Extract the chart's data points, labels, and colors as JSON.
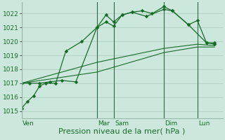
{
  "bg_color": "#cce8dd",
  "grid_color": "#aaccbb",
  "line_color": "#1a6b2a",
  "title": "Pression niveau de la mer( hPa )",
  "ylim": [
    1014.5,
    1022.8
  ],
  "yticks": [
    1015,
    1016,
    1017,
    1018,
    1019,
    1020,
    1021,
    1022
  ],
  "day_labels": [
    "Ven",
    "Mar",
    "Sam",
    "Dim",
    "Lun"
  ],
  "day_positions": [
    0.0,
    0.375,
    0.458,
    0.708,
    0.875
  ],
  "xlim": [
    0.0,
    1.0
  ],
  "series1_x": [
    0.0,
    0.03,
    0.06,
    0.09,
    0.12,
    0.17,
    0.22,
    0.3,
    0.375,
    0.42,
    0.458,
    0.5,
    0.55,
    0.6,
    0.65,
    0.708,
    0.75,
    0.83,
    0.875,
    0.92,
    0.96
  ],
  "series1_y": [
    1015.2,
    1015.7,
    1016.1,
    1016.8,
    1017.0,
    1017.0,
    1019.3,
    1020.0,
    1021.0,
    1021.9,
    1021.4,
    1021.9,
    1022.1,
    1022.2,
    1022.0,
    1022.5,
    1022.2,
    1021.2,
    1021.5,
    1019.9,
    1019.8
  ],
  "series2_x": [
    0.0,
    0.04,
    0.09,
    0.14,
    0.2,
    0.27,
    0.375,
    0.42,
    0.458,
    0.5,
    0.55,
    0.62,
    0.708,
    0.75,
    0.83,
    0.92,
    0.96
  ],
  "series2_y": [
    1017.0,
    1017.0,
    1017.0,
    1017.1,
    1017.2,
    1017.1,
    1021.0,
    1021.4,
    1021.1,
    1021.9,
    1022.1,
    1021.8,
    1022.3,
    1022.2,
    1021.2,
    1019.9,
    1019.9
  ],
  "series3_x": [
    0.0,
    0.375,
    0.708,
    0.875,
    0.96
  ],
  "series3_y": [
    1017.0,
    1018.5,
    1019.5,
    1019.8,
    1019.7
  ],
  "series4_x": [
    0.0,
    0.375,
    0.708,
    0.875,
    0.96
  ],
  "series4_y": [
    1017.0,
    1017.8,
    1019.2,
    1019.6,
    1019.6
  ],
  "vline_color": "#336644",
  "ylabel_fontsize": 6.5,
  "xlabel_fontsize": 8.0,
  "tick_label_color": "#1a6b2a"
}
